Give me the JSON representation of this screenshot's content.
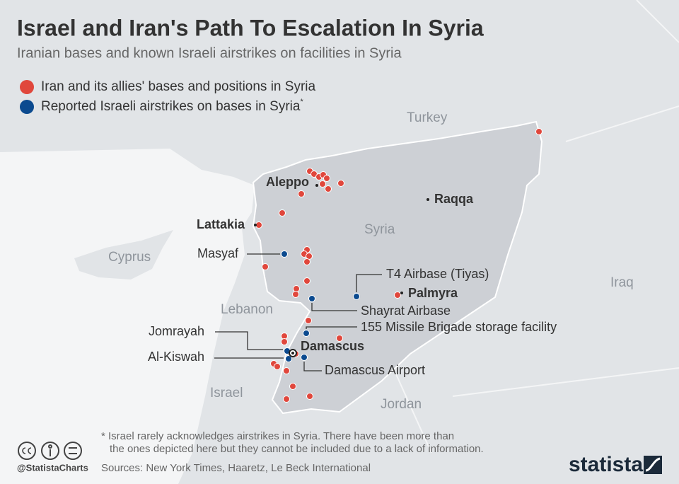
{
  "header": {
    "title": "Israel and Iran's Path To Escalation In Syria",
    "subtitle": "Iranian bases and known Israeli airstrikes on facilities in Syria"
  },
  "legend": [
    {
      "label": "Iran and its allies' bases and positions in Syria"
    },
    {
      "label": "Reported Israeli airstrikes on bases in Syria",
      "note": "*"
    }
  ],
  "countries": [
    "Turkey",
    "Syria",
    "Cyprus",
    "Lebanon",
    "Israel",
    "Jordan",
    "Iraq"
  ],
  "cities": [
    "Aleppo",
    "Raqqa",
    "Lattakia",
    "Palmyra",
    "Damascus"
  ],
  "sites": [
    "Masyaf",
    "T4 Airbase (Tiyas)",
    "Shayrat Airbase",
    "155 Missile Brigade storage facility",
    "Jomrayah",
    "Al-Kiswah",
    "Damascus Airport"
  ],
  "footer": {
    "footnote": [
      "* Israel rarely acknowledges airstrikes in Syria. There have been more than",
      "the ones depicted here but they cannot be included due to a lack of information."
    ],
    "handle": "@StatistaCharts",
    "sources": "Sources: New York Times, Haaretz, Le Beck International",
    "brand": "statista"
  }
}
